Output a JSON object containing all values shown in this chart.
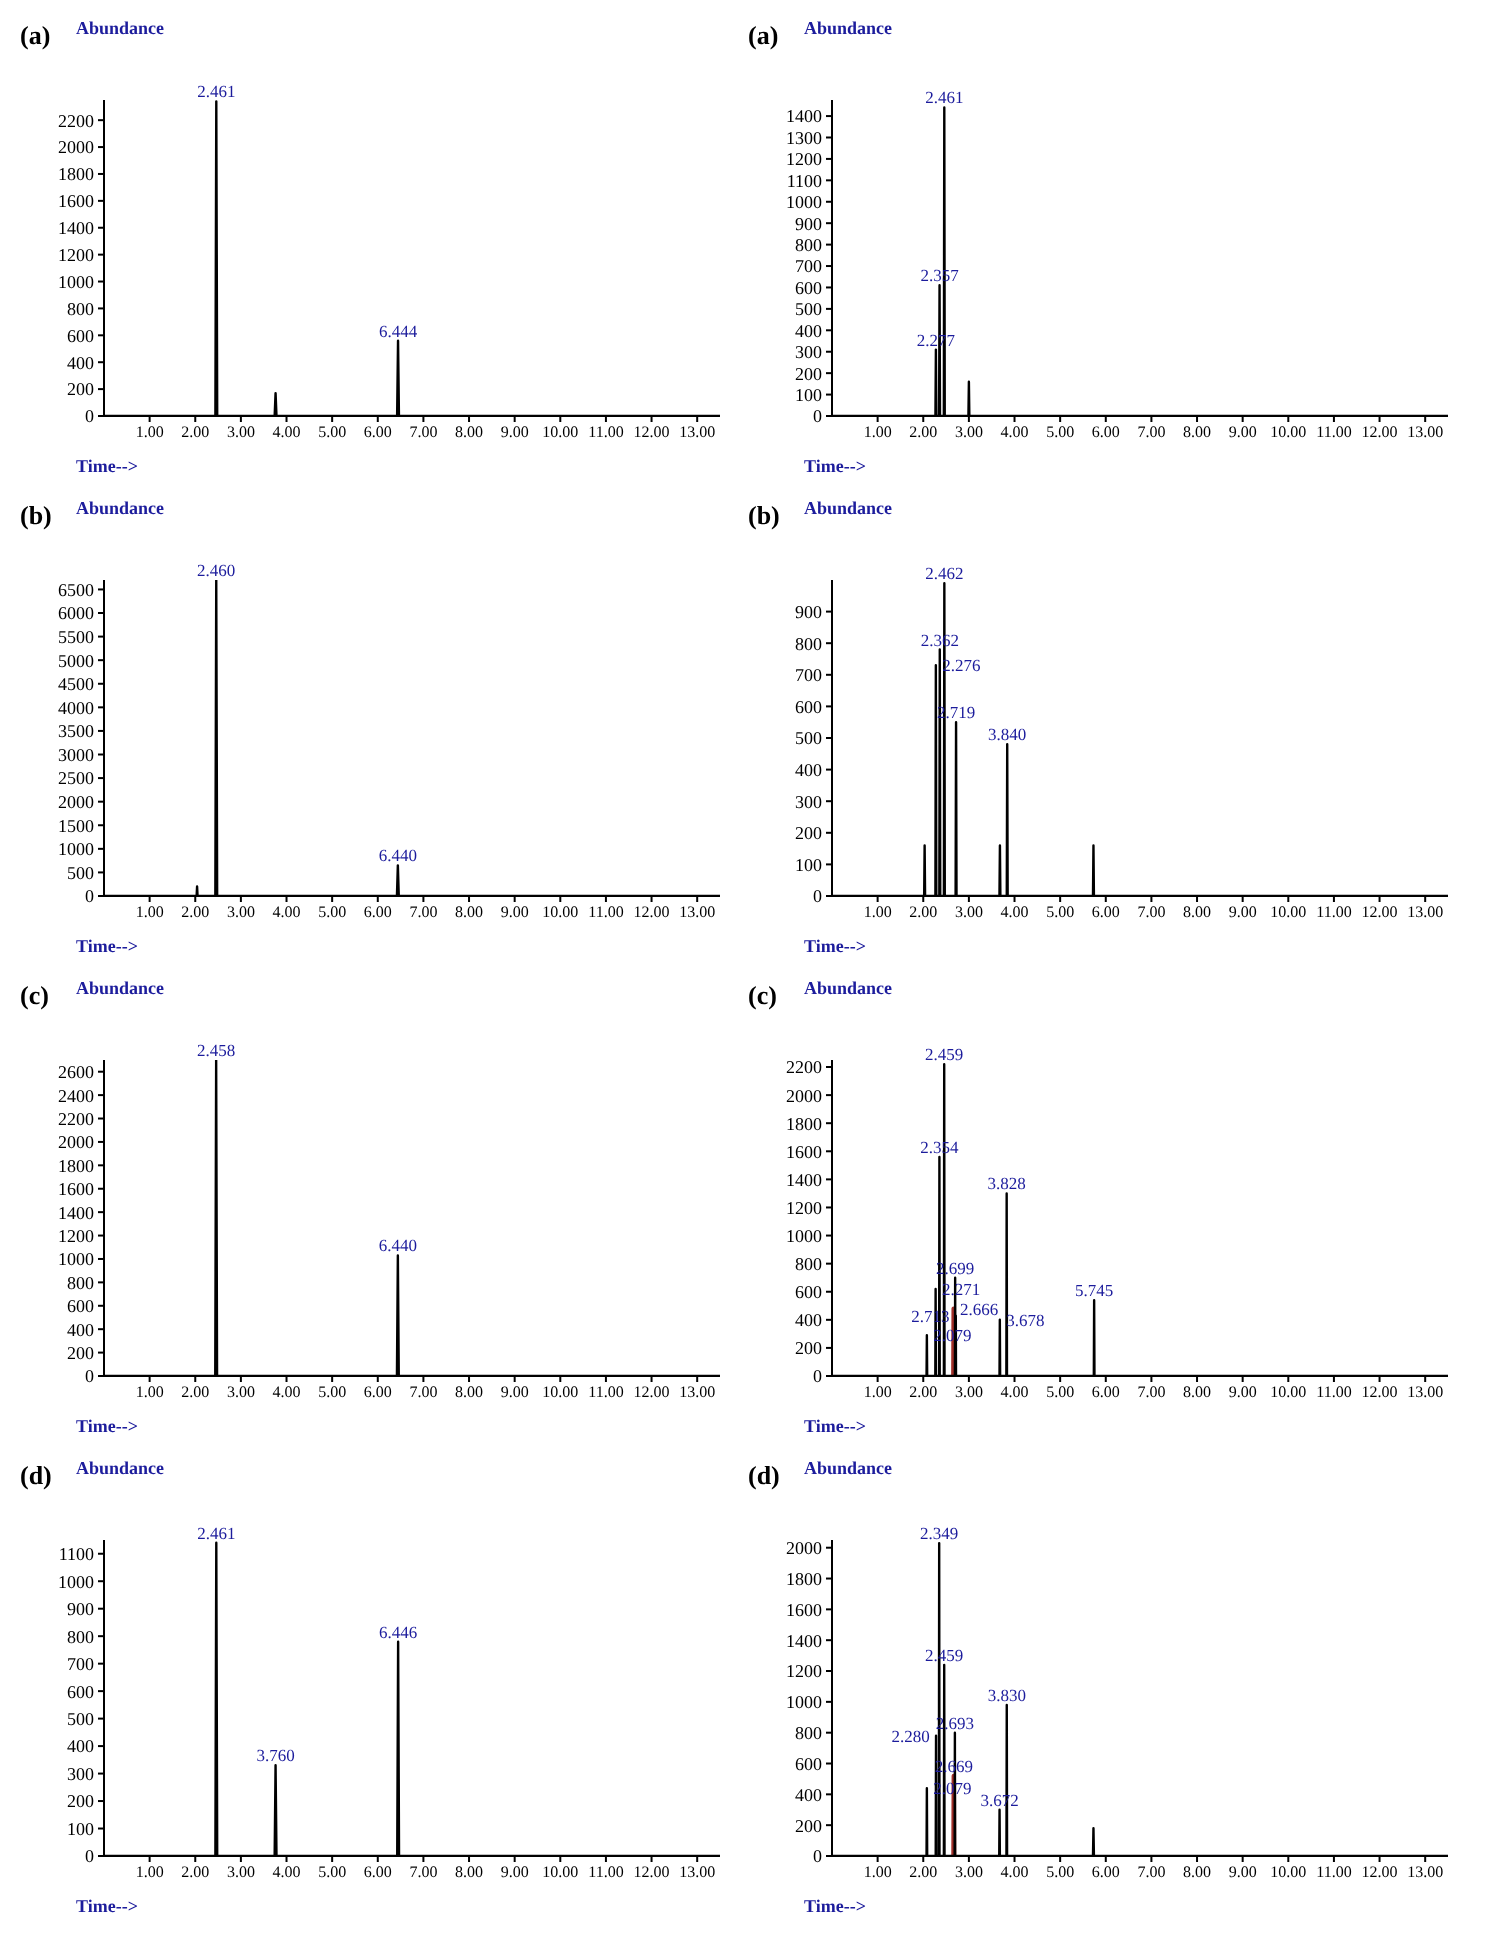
{
  "chart_data": [
    {
      "type": "line",
      "title": "(a)",
      "ylabel": "Abundance",
      "xlabel": "Time-->",
      "xlim": [
        0,
        13.5
      ],
      "xticks": [
        {
          "value": 1,
          "label": "1.00"
        },
        {
          "value": 2,
          "label": "2.00"
        },
        {
          "value": 3,
          "label": "3.00"
        },
        {
          "value": 4,
          "label": "4.00"
        },
        {
          "value": 5,
          "label": "5.00"
        },
        {
          "value": 6,
          "label": "6.00"
        },
        {
          "value": 7,
          "label": "7.00"
        },
        {
          "value": 8,
          "label": "8.00"
        },
        {
          "value": 9,
          "label": "9.00"
        },
        {
          "value": 10,
          "label": "10.00"
        },
        {
          "value": 11,
          "label": "11.00"
        },
        {
          "value": 12,
          "label": "12.00"
        },
        {
          "value": 13,
          "label": "13.00"
        }
      ],
      "ylim": [
        0,
        2350
      ],
      "yticks": [
        0,
        200,
        400,
        600,
        800,
        1000,
        1200,
        1400,
        1600,
        1800,
        2000,
        2200
      ],
      "series": [
        {
          "color": "#000000",
          "x": [
            0,
            2.441,
            2.461,
            2.481,
            3.74,
            3.76,
            3.78,
            6.424,
            6.444,
            6.464,
            13.5
          ],
          "values": [
            0,
            0,
            2340,
            0,
            0,
            170,
            0,
            0,
            560,
            0,
            0
          ]
        }
      ],
      "annotations": [
        {
          "text": "2.461",
          "x": 2.461,
          "y": 2340
        },
        {
          "text": "6.444",
          "x": 6.444,
          "y": 560
        }
      ]
    },
    {
      "type": "line",
      "title": "(a)",
      "ylabel": "Abundance",
      "xlabel": "Time-->",
      "xlim": [
        0,
        13.5
      ],
      "xticks": [
        {
          "value": 1,
          "label": "1.00"
        },
        {
          "value": 2,
          "label": "2.00"
        },
        {
          "value": 3,
          "label": "3.00"
        },
        {
          "value": 4,
          "label": "4.00"
        },
        {
          "value": 5,
          "label": "5.00"
        },
        {
          "value": 6,
          "label": "6.00"
        },
        {
          "value": 7,
          "label": "7.00"
        },
        {
          "value": 8,
          "label": "8.00"
        },
        {
          "value": 9,
          "label": "9.00"
        },
        {
          "value": 10,
          "label": "10.00"
        },
        {
          "value": 11,
          "label": "11.00"
        },
        {
          "value": 12,
          "label": "12.00"
        },
        {
          "value": 13,
          "label": "13.00"
        }
      ],
      "ylim": [
        0,
        1475
      ],
      "yticks": [
        0,
        100,
        200,
        300,
        400,
        500,
        600,
        700,
        800,
        900,
        1000,
        1100,
        1200,
        1300,
        1400
      ],
      "series": [
        {
          "color": "#000000",
          "x": [
            0,
            2.267,
            2.277,
            2.287,
            2.347,
            2.357,
            2.367,
            2.451,
            2.461,
            2.471,
            2.99,
            3.0,
            3.01,
            13.5
          ],
          "values": [
            0,
            0,
            310,
            0,
            0,
            610,
            0,
            0,
            1440,
            0,
            0,
            160,
            0,
            0
          ]
        }
      ],
      "annotations": [
        {
          "text": "2.461",
          "x": 2.461,
          "y": 1440
        },
        {
          "text": "2.357",
          "x": 2.357,
          "y": 610
        },
        {
          "text": "2.277",
          "x": 2.277,
          "y": 310
        }
      ]
    },
    {
      "type": "line",
      "title": "(b)",
      "ylabel": "Abundance",
      "xlabel": "Time-->",
      "xlim": [
        0,
        13.5
      ],
      "xticks": [
        {
          "value": 1,
          "label": "1.00"
        },
        {
          "value": 2,
          "label": "2.00"
        },
        {
          "value": 3,
          "label": "3.00"
        },
        {
          "value": 4,
          "label": "4.00"
        },
        {
          "value": 5,
          "label": "5.00"
        },
        {
          "value": 6,
          "label": "6.00"
        },
        {
          "value": 7,
          "label": "7.00"
        },
        {
          "value": 8,
          "label": "8.00"
        },
        {
          "value": 9,
          "label": "9.00"
        },
        {
          "value": 10,
          "label": "10.00"
        },
        {
          "value": 11,
          "label": "11.00"
        },
        {
          "value": 12,
          "label": "12.00"
        },
        {
          "value": 13,
          "label": "13.00"
        }
      ],
      "ylim": [
        0,
        6700
      ],
      "yticks": [
        0,
        500,
        1000,
        1500,
        2000,
        2500,
        3000,
        3500,
        4000,
        4500,
        5000,
        5500,
        6000,
        6500
      ],
      "series": [
        {
          "color": "#000000",
          "x": [
            0,
            2.03,
            2.04,
            2.05,
            2.44,
            2.46,
            2.48,
            6.42,
            6.44,
            6.46,
            13.5
          ],
          "values": [
            0,
            0,
            200,
            0,
            0,
            6700,
            0,
            0,
            650,
            0,
            0
          ]
        }
      ],
      "annotations": [
        {
          "text": "2.460",
          "x": 2.46,
          "y": 6700
        },
        {
          "text": "6.440",
          "x": 6.44,
          "y": 650
        }
      ]
    },
    {
      "type": "line",
      "title": "(b)",
      "ylabel": "Abundance",
      "xlabel": "Time-->",
      "xlim": [
        0,
        13.5
      ],
      "xticks": [
        {
          "value": 1,
          "label": "1.00"
        },
        {
          "value": 2,
          "label": "2.00"
        },
        {
          "value": 3,
          "label": "3.00"
        },
        {
          "value": 4,
          "label": "4.00"
        },
        {
          "value": 5,
          "label": "5.00"
        },
        {
          "value": 6,
          "label": "6.00"
        },
        {
          "value": 7,
          "label": "7.00"
        },
        {
          "value": 8,
          "label": "8.00"
        },
        {
          "value": 9,
          "label": "9.00"
        },
        {
          "value": 10,
          "label": "10.00"
        },
        {
          "value": 11,
          "label": "11.00"
        },
        {
          "value": 12,
          "label": "12.00"
        },
        {
          "value": 13,
          "label": "13.00"
        }
      ],
      "ylim": [
        0,
        1000
      ],
      "yticks": [
        0,
        100,
        200,
        300,
        400,
        500,
        600,
        700,
        800,
        900
      ],
      "series": [
        {
          "color": "#000000",
          "x": [
            0,
            2.02,
            2.03,
            2.04,
            2.266,
            2.276,
            2.286,
            2.352,
            2.362,
            2.372,
            2.452,
            2.462,
            2.472,
            2.709,
            2.719,
            2.729,
            3.67,
            3.68,
            3.69,
            3.83,
            3.84,
            3.85,
            5.72,
            5.73,
            5.74,
            13.5
          ],
          "values": [
            0,
            0,
            160,
            0,
            0,
            730,
            0,
            0,
            780,
            0,
            0,
            990,
            0,
            0,
            550,
            0,
            0,
            160,
            0,
            0,
            480,
            0,
            0,
            160,
            0,
            0
          ]
        }
      ],
      "annotations": [
        {
          "text": "2.462",
          "x": 2.462,
          "y": 990
        },
        {
          "text": "2.362",
          "x": 2.362,
          "y": 780
        },
        {
          "text": "2.276",
          "x": 2.276,
          "y": 730
        },
        {
          "text": "2.719",
          "x": 2.719,
          "y": 550
        },
        {
          "text": "3.840",
          "x": 3.84,
          "y": 480
        }
      ]
    },
    {
      "type": "line",
      "title": "(c)",
      "ylabel": "Abundance",
      "xlabel": "Time-->",
      "xlim": [
        0,
        13.5
      ],
      "xticks": [
        {
          "value": 1,
          "label": "1.00"
        },
        {
          "value": 2,
          "label": "2.00"
        },
        {
          "value": 3,
          "label": "3.00"
        },
        {
          "value": 4,
          "label": "4.00"
        },
        {
          "value": 5,
          "label": "5.00"
        },
        {
          "value": 6,
          "label": "6.00"
        },
        {
          "value": 7,
          "label": "7.00"
        },
        {
          "value": 8,
          "label": "8.00"
        },
        {
          "value": 9,
          "label": "9.00"
        },
        {
          "value": 10,
          "label": "10.00"
        },
        {
          "value": 11,
          "label": "11.00"
        },
        {
          "value": 12,
          "label": "12.00"
        },
        {
          "value": 13,
          "label": "13.00"
        }
      ],
      "ylim": [
        0,
        2700
      ],
      "yticks": [
        0,
        200,
        400,
        600,
        800,
        1000,
        1200,
        1400,
        1600,
        1800,
        2000,
        2200,
        2400,
        2600
      ],
      "series": [
        {
          "color": "#000000",
          "x": [
            0,
            2.438,
            2.458,
            2.478,
            6.42,
            6.44,
            6.46,
            13.5
          ],
          "values": [
            0,
            0,
            2700,
            0,
            0,
            1030,
            0,
            0
          ]
        }
      ],
      "annotations": [
        {
          "text": "2.458",
          "x": 2.458,
          "y": 2700
        },
        {
          "text": "6.440",
          "x": 6.44,
          "y": 1030
        }
      ]
    },
    {
      "type": "line",
      "title": "(c)",
      "ylabel": "Abundance",
      "xlabel": "Time-->",
      "xlim": [
        0,
        13.5
      ],
      "xticks": [
        {
          "value": 1,
          "label": "1.00"
        },
        {
          "value": 2,
          "label": "2.00"
        },
        {
          "value": 3,
          "label": "3.00"
        },
        {
          "value": 4,
          "label": "4.00"
        },
        {
          "value": 5,
          "label": "5.00"
        },
        {
          "value": 6,
          "label": "6.00"
        },
        {
          "value": 7,
          "label": "7.00"
        },
        {
          "value": 8,
          "label": "8.00"
        },
        {
          "value": 9,
          "label": "9.00"
        },
        {
          "value": 10,
          "label": "10.00"
        },
        {
          "value": 11,
          "label": "11.00"
        },
        {
          "value": 12,
          "label": "12.00"
        },
        {
          "value": 13,
          "label": "13.00"
        }
      ],
      "ylim": [
        0,
        2250
      ],
      "yticks": [
        0,
        200,
        400,
        600,
        800,
        1000,
        1200,
        1400,
        1600,
        1800,
        2000,
        2200
      ],
      "series": [
        {
          "color": "#000000",
          "x": [
            0,
            2.072,
            2.079,
            2.086,
            2.264,
            2.271,
            2.278,
            2.347,
            2.354,
            2.361,
            2.452,
            2.459,
            2.466,
            2.694,
            2.699,
            2.705,
            2.708,
            2.713,
            2.718,
            3.671,
            3.678,
            3.685,
            3.821,
            3.828,
            3.835,
            5.738,
            5.745,
            5.752,
            13.5
          ],
          "values": [
            0,
            0,
            290,
            0,
            0,
            620,
            0,
            0,
            1560,
            0,
            0,
            2220,
            0,
            0,
            700,
            0,
            0,
            430,
            0,
            0,
            400,
            0,
            0,
            1300,
            0,
            0,
            540,
            0,
            0
          ]
        },
        {
          "color": "#a0302a",
          "x": [
            2.659,
            2.666,
            2.673
          ],
          "values": [
            0,
            480,
            0
          ]
        }
      ],
      "annotations": [
        {
          "text": "2.459",
          "x": 2.459,
          "y": 2220
        },
        {
          "text": "2.354",
          "x": 2.354,
          "y": 1560
        },
        {
          "text": "3.828",
          "x": 3.828,
          "y": 1300
        },
        {
          "text": "2.699",
          "x": 2.699,
          "y": 700
        },
        {
          "text": "2.271",
          "x": 2.271,
          "y": 620
        },
        {
          "text": "5.745",
          "x": 5.745,
          "y": 540
        },
        {
          "text": "2.666",
          "x": 2.666,
          "y": 480
        },
        {
          "text": "2.713",
          "x": 2.713,
          "y": 430
        },
        {
          "text": "3.678",
          "x": 3.678,
          "y": 400
        },
        {
          "text": "2.079",
          "x": 2.079,
          "y": 290
        }
      ]
    },
    {
      "type": "line",
      "title": "(d)",
      "ylabel": "Abundance",
      "xlabel": "Time-->",
      "xlim": [
        0,
        13.5
      ],
      "xticks": [
        {
          "value": 1,
          "label": "1.00"
        },
        {
          "value": 2,
          "label": "2.00"
        },
        {
          "value": 3,
          "label": "3.00"
        },
        {
          "value": 4,
          "label": "4.00"
        },
        {
          "value": 5,
          "label": "5.00"
        },
        {
          "value": 6,
          "label": "6.00"
        },
        {
          "value": 7,
          "label": "7.00"
        },
        {
          "value": 8,
          "label": "8.00"
        },
        {
          "value": 9,
          "label": "9.00"
        },
        {
          "value": 10,
          "label": "10.00"
        },
        {
          "value": 11,
          "label": "11.00"
        },
        {
          "value": 12,
          "label": "12.00"
        },
        {
          "value": 13,
          "label": "13.00"
        }
      ],
      "ylim": [
        0,
        1150
      ],
      "yticks": [
        0,
        100,
        200,
        300,
        400,
        500,
        600,
        700,
        800,
        900,
        1000,
        1100
      ],
      "series": [
        {
          "color": "#000000",
          "x": [
            0,
            2.441,
            2.461,
            2.481,
            3.74,
            3.76,
            3.78,
            6.426,
            6.446,
            6.466,
            13.5
          ],
          "values": [
            0,
            0,
            1140,
            0,
            0,
            330,
            0,
            0,
            780,
            0,
            0
          ]
        }
      ],
      "annotations": [
        {
          "text": "2.461",
          "x": 2.461,
          "y": 1140
        },
        {
          "text": "6.446",
          "x": 6.446,
          "y": 780
        },
        {
          "text": "3.760",
          "x": 3.76,
          "y": 330
        }
      ]
    },
    {
      "type": "line",
      "title": "(d)",
      "ylabel": "Abundance",
      "xlabel": "Time-->",
      "xlim": [
        0,
        13.5
      ],
      "xticks": [
        {
          "value": 1,
          "label": "1.00"
        },
        {
          "value": 2,
          "label": "2.00"
        },
        {
          "value": 3,
          "label": "3.00"
        },
        {
          "value": 4,
          "label": "4.00"
        },
        {
          "value": 5,
          "label": "5.00"
        },
        {
          "value": 6,
          "label": "6.00"
        },
        {
          "value": 7,
          "label": "7.00"
        },
        {
          "value": 8,
          "label": "8.00"
        },
        {
          "value": 9,
          "label": "9.00"
        },
        {
          "value": 10,
          "label": "10.00"
        },
        {
          "value": 11,
          "label": "11.00"
        },
        {
          "value": 12,
          "label": "12.00"
        },
        {
          "value": 13,
          "label": "13.00"
        }
      ],
      "ylim": [
        0,
        2050
      ],
      "yticks": [
        0,
        200,
        400,
        600,
        800,
        1000,
        1200,
        1400,
        1600,
        1800,
        2000
      ],
      "series": [
        {
          "color": "#000000",
          "x": [
            0,
            2.072,
            2.079,
            2.086,
            2.273,
            2.28,
            2.287,
            2.342,
            2.349,
            2.356,
            2.452,
            2.459,
            2.466,
            2.688,
            2.693,
            2.698,
            3.665,
            3.672,
            3.679,
            3.823,
            3.83,
            3.837,
            5.72,
            5.73,
            5.74,
            13.5
          ],
          "values": [
            0,
            0,
            440,
            0,
            0,
            780,
            0,
            0,
            2030,
            0,
            0,
            1240,
            0,
            0,
            800,
            0,
            0,
            300,
            0,
            0,
            980,
            0,
            0,
            180,
            0,
            0
          ]
        },
        {
          "color": "#a0302a",
          "x": [
            2.662,
            2.669,
            2.676
          ],
          "values": [
            0,
            520,
            0
          ]
        }
      ],
      "annotations": [
        {
          "text": "2.349",
          "x": 2.349,
          "y": 2030
        },
        {
          "text": "2.459",
          "x": 2.459,
          "y": 1240
        },
        {
          "text": "3.830",
          "x": 3.83,
          "y": 980
        },
        {
          "text": "2.693",
          "x": 2.693,
          "y": 800
        },
        {
          "text": "2.280",
          "x": 2.28,
          "y": 780
        },
        {
          "text": "2.669",
          "x": 2.669,
          "y": 520
        },
        {
          "text": "2.079",
          "x": 2.079,
          "y": 440
        },
        {
          "text": "3.672",
          "x": 3.672,
          "y": 300
        }
      ]
    }
  ]
}
